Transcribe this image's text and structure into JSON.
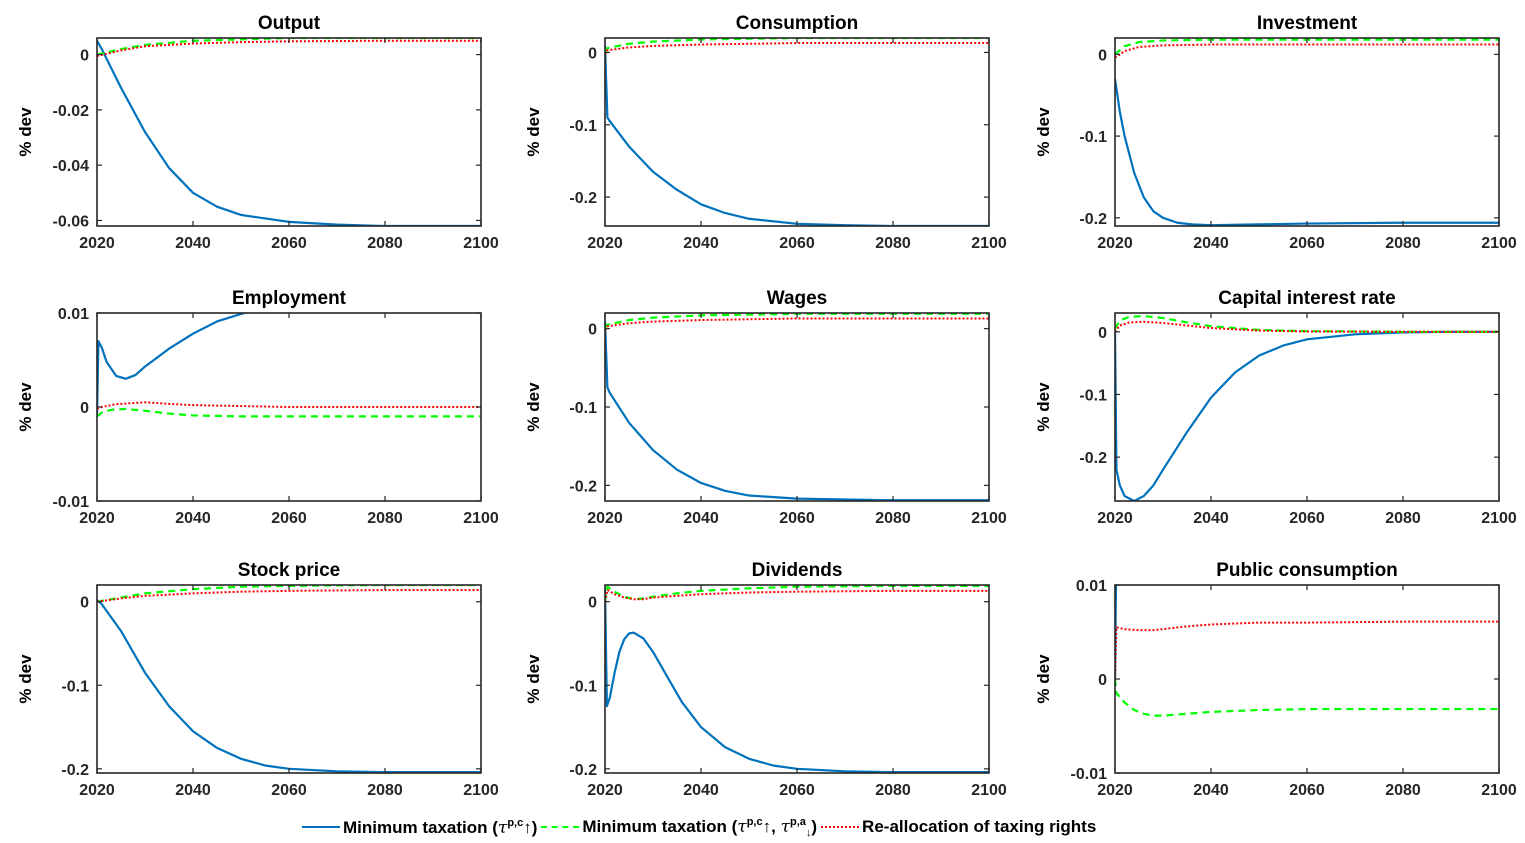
{
  "colors": {
    "min_tax": "#0072BD",
    "min_tax_pa": "#00FF00",
    "realloc": "#FF0000",
    "axis": "#262626"
  },
  "legend": {
    "min_tax": {
      "prefix": "Minimum taxation (",
      "tau": "τ",
      "sup": "p,c",
      "arrow": "↑",
      "suffix": ")"
    },
    "min_tax_pa": {
      "prefix": "Minimum taxation (",
      "tau1": "τ",
      "sup1": "p,c",
      "arrow1": "↑",
      "sep": ", ",
      "tau2": "τ",
      "sup2": "p,a",
      "arrow2": "↓",
      "suffix": ")"
    },
    "realloc": {
      "label": "Re-allocation of taxing rights"
    }
  },
  "chart_data": [
    {
      "type": "line",
      "title": "Output",
      "ylabel": "% dev",
      "xlim": [
        2020,
        2100
      ],
      "ylim": [
        -0.062,
        0.006
      ],
      "xticks": [
        "2020",
        "2040",
        "2060",
        "2080",
        "2100"
      ],
      "yticks": [
        {
          "v": 0,
          "t": "0"
        },
        {
          "v": -0.02,
          "t": "-0.02"
        },
        {
          "v": -0.04,
          "t": "-0.04"
        },
        {
          "v": -0.06,
          "t": "-0.06"
        }
      ],
      "series": [
        {
          "key": "min_tax",
          "x": [
            2020,
            2021,
            2025,
            2030,
            2035,
            2040,
            2045,
            2050,
            2060,
            2070,
            2080,
            2090,
            2100
          ],
          "y": [
            0.005,
            0.002,
            -0.012,
            -0.028,
            -0.041,
            -0.05,
            -0.055,
            -0.058,
            -0.0605,
            -0.0615,
            -0.062,
            -0.062,
            -0.062
          ]
        },
        {
          "key": "min_tax_pa",
          "x": [
            2020,
            2025,
            2030,
            2040,
            2050,
            2060,
            2080,
            2100
          ],
          "y": [
            0.0,
            0.002,
            0.0035,
            0.005,
            0.0055,
            0.006,
            0.006,
            0.006
          ]
        },
        {
          "key": "realloc",
          "x": [
            2020,
            2025,
            2030,
            2040,
            2050,
            2060,
            2080,
            2100
          ],
          "y": [
            -0.0005,
            0.0015,
            0.003,
            0.004,
            0.0045,
            0.0048,
            0.005,
            0.005
          ]
        }
      ]
    },
    {
      "type": "line",
      "title": "Consumption",
      "ylabel": "% dev",
      "xlim": [
        2020,
        2100
      ],
      "ylim": [
        -0.24,
        0.02
      ],
      "xticks": [
        "2020",
        "2040",
        "2060",
        "2080",
        "2100"
      ],
      "yticks": [
        {
          "v": 0,
          "t": "0"
        },
        {
          "v": -0.1,
          "t": "-0.1"
        },
        {
          "v": -0.2,
          "t": "-0.2"
        }
      ],
      "series": [
        {
          "key": "min_tax",
          "x": [
            2020,
            2020.5,
            2021,
            2025,
            2030,
            2035,
            2040,
            2045,
            2050,
            2060,
            2070,
            2080,
            2090,
            2100
          ],
          "y": [
            0.01,
            -0.09,
            -0.095,
            -0.13,
            -0.165,
            -0.19,
            -0.21,
            -0.222,
            -0.23,
            -0.237,
            -0.239,
            -0.24,
            -0.24,
            -0.24
          ]
        },
        {
          "key": "min_tax_pa",
          "x": [
            2020,
            2020.5,
            2025,
            2030,
            2040,
            2050,
            2060,
            2080,
            2100
          ],
          "y": [
            0.0,
            0.006,
            0.012,
            0.015,
            0.018,
            0.019,
            0.02,
            0.02,
            0.02
          ]
        },
        {
          "key": "realloc",
          "x": [
            2020,
            2020.5,
            2025,
            2030,
            2040,
            2050,
            2060,
            2080,
            2100
          ],
          "y": [
            -0.003,
            0.003,
            0.007,
            0.009,
            0.011,
            0.012,
            0.013,
            0.013,
            0.013
          ]
        }
      ]
    },
    {
      "type": "line",
      "title": "Investment",
      "ylabel": "% dev",
      "xlim": [
        2020,
        2100
      ],
      "ylim": [
        -0.21,
        0.02
      ],
      "xticks": [
        "2020",
        "2040",
        "2060",
        "2080",
        "2100"
      ],
      "yticks": [
        {
          "v": 0,
          "t": "0"
        },
        {
          "v": -0.1,
          "t": "-0.1"
        },
        {
          "v": -0.2,
          "t": "-0.2"
        }
      ],
      "series": [
        {
          "key": "min_tax",
          "x": [
            2020,
            2021,
            2022,
            2024,
            2026,
            2028,
            2030,
            2033,
            2036,
            2040,
            2050,
            2060,
            2080,
            2100
          ],
          "y": [
            -0.03,
            -0.07,
            -0.1,
            -0.145,
            -0.175,
            -0.192,
            -0.2,
            -0.206,
            -0.208,
            -0.209,
            -0.208,
            -0.207,
            -0.206,
            -0.206
          ]
        },
        {
          "key": "min_tax_pa",
          "x": [
            2020,
            2022,
            2025,
            2030,
            2040,
            2060,
            2080,
            2100
          ],
          "y": [
            0.0,
            0.01,
            0.015,
            0.017,
            0.018,
            0.018,
            0.018,
            0.018
          ]
        },
        {
          "key": "realloc",
          "x": [
            2020,
            2022,
            2025,
            2030,
            2040,
            2060,
            2080,
            2100
          ],
          "y": [
            -0.004,
            0.004,
            0.009,
            0.011,
            0.012,
            0.012,
            0.012,
            0.012
          ]
        }
      ]
    },
    {
      "type": "line",
      "title": "Employment",
      "ylabel": "% dev",
      "xlim": [
        2020,
        2100
      ],
      "ylim": [
        -0.01,
        0.01
      ],
      "xticks": [
        "2020",
        "2040",
        "2060",
        "2080",
        "2100"
      ],
      "yticks": [
        {
          "v": 0.01,
          "t": "0.01"
        },
        {
          "v": 0,
          "t": "0"
        },
        {
          "v": -0.01,
          "t": "-0.01"
        }
      ],
      "series": [
        {
          "key": "min_tax",
          "x": [
            2020,
            2020.3,
            2021,
            2022,
            2024,
            2026,
            2028,
            2030,
            2035,
            2040,
            2045,
            2050,
            2052
          ],
          "y": [
            -0.001,
            0.007,
            0.0063,
            0.0048,
            0.0033,
            0.003,
            0.0034,
            0.0043,
            0.0062,
            0.0078,
            0.0091,
            0.0099,
            0.0102
          ]
        },
        {
          "key": "min_tax_pa",
          "x": [
            2020,
            2021,
            2023,
            2026,
            2030,
            2035,
            2040,
            2050,
            2060,
            2080,
            2100
          ],
          "y": [
            -0.001,
            -0.0006,
            -0.0003,
            -0.0002,
            -0.0004,
            -0.0007,
            -0.0009,
            -0.001,
            -0.001,
            -0.001,
            -0.001
          ]
        },
        {
          "key": "realloc",
          "x": [
            2020,
            2021,
            2024,
            2027,
            2030,
            2033,
            2036,
            2040,
            2050,
            2060,
            2080,
            2100
          ],
          "y": [
            -0.0002,
            0.0,
            0.0003,
            0.0004,
            0.0005,
            0.0004,
            0.0003,
            0.0002,
            0.0001,
            0.0,
            0.0,
            0.0
          ]
        }
      ]
    },
    {
      "type": "line",
      "title": "Wages",
      "ylabel": "% dev",
      "xlim": [
        2020,
        2100
      ],
      "ylim": [
        -0.22,
        0.02
      ],
      "xticks": [
        "2020",
        "2040",
        "2060",
        "2080",
        "2100"
      ],
      "yticks": [
        {
          "v": 0,
          "t": "0"
        },
        {
          "v": -0.1,
          "t": "-0.1"
        },
        {
          "v": -0.2,
          "t": "-0.2"
        }
      ],
      "series": [
        {
          "key": "min_tax",
          "x": [
            2020,
            2020.5,
            2021,
            2025,
            2030,
            2035,
            2040,
            2045,
            2050,
            2060,
            2070,
            2080,
            2090,
            2100
          ],
          "y": [
            0.01,
            -0.075,
            -0.082,
            -0.12,
            -0.155,
            -0.18,
            -0.197,
            -0.207,
            -0.213,
            -0.217,
            -0.218,
            -0.219,
            -0.219,
            -0.219
          ]
        },
        {
          "key": "min_tax_pa",
          "x": [
            2020,
            2020.5,
            2025,
            2030,
            2040,
            2050,
            2060,
            2080,
            2100
          ],
          "y": [
            0.0,
            0.005,
            0.011,
            0.014,
            0.017,
            0.018,
            0.019,
            0.019,
            0.019
          ]
        },
        {
          "key": "realloc",
          "x": [
            2020,
            2020.5,
            2025,
            2030,
            2040,
            2050,
            2060,
            2080,
            2100
          ],
          "y": [
            -0.002,
            0.003,
            0.007,
            0.009,
            0.011,
            0.012,
            0.013,
            0.013,
            0.013
          ]
        }
      ]
    },
    {
      "type": "line",
      "title": "Capital interest rate",
      "ylabel": "% dev",
      "xlim": [
        2020,
        2100
      ],
      "ylim": [
        -0.27,
        0.03
      ],
      "xticks": [
        "2020",
        "2040",
        "2060",
        "2080",
        "2100"
      ],
      "yticks": [
        {
          "v": 0,
          "t": "0"
        },
        {
          "v": -0.1,
          "t": "-0.1"
        },
        {
          "v": -0.2,
          "t": "-0.2"
        }
      ],
      "series": [
        {
          "key": "min_tax",
          "x": [
            2020,
            2020.3,
            2021,
            2022,
            2024,
            2026,
            2028,
            2030,
            2035,
            2040,
            2045,
            2050,
            2055,
            2060,
            2070,
            2080,
            2090,
            2100
          ],
          "y": [
            0.0,
            -0.22,
            -0.245,
            -0.262,
            -0.27,
            -0.262,
            -0.245,
            -0.22,
            -0.16,
            -0.105,
            -0.065,
            -0.038,
            -0.022,
            -0.012,
            -0.004,
            -0.001,
            0.0,
            0.0
          ]
        },
        {
          "key": "min_tax_pa",
          "x": [
            2020,
            2021,
            2023,
            2026,
            2030,
            2035,
            2040,
            2050,
            2060,
            2080,
            2100
          ],
          "y": [
            0.005,
            0.018,
            0.024,
            0.025,
            0.022,
            0.015,
            0.009,
            0.003,
            0.001,
            0.0,
            0.0
          ]
        },
        {
          "key": "realloc",
          "x": [
            2020,
            2021,
            2023,
            2026,
            2030,
            2035,
            2040,
            2050,
            2060,
            2080,
            2100
          ],
          "y": [
            0.0,
            0.01,
            0.015,
            0.016,
            0.014,
            0.01,
            0.006,
            0.002,
            0.0005,
            0.0,
            0.0
          ]
        }
      ]
    },
    {
      "type": "line",
      "title": "Stock price",
      "ylabel": "% dev",
      "xlim": [
        2020,
        2100
      ],
      "ylim": [
        -0.205,
        0.02
      ],
      "xticks": [
        "2020",
        "2040",
        "2060",
        "2080",
        "2100"
      ],
      "yticks": [
        {
          "v": 0,
          "t": "0"
        },
        {
          "v": -0.1,
          "t": "-0.1"
        },
        {
          "v": -0.2,
          "t": "-0.2"
        }
      ],
      "series": [
        {
          "key": "min_tax",
          "x": [
            2020,
            2021,
            2025,
            2030,
            2035,
            2040,
            2045,
            2050,
            2055,
            2060,
            2070,
            2080,
            2090,
            2100
          ],
          "y": [
            0.002,
            -0.003,
            -0.035,
            -0.085,
            -0.125,
            -0.155,
            -0.175,
            -0.188,
            -0.196,
            -0.2,
            -0.203,
            -0.204,
            -0.204,
            -0.204
          ]
        },
        {
          "key": "min_tax_pa",
          "x": [
            2020,
            2025,
            2030,
            2040,
            2050,
            2060,
            2080,
            2100
          ],
          "y": [
            0.0,
            0.005,
            0.01,
            0.015,
            0.018,
            0.019,
            0.02,
            0.02
          ]
        },
        {
          "key": "realloc",
          "x": [
            2020,
            2025,
            2030,
            2040,
            2050,
            2060,
            2080,
            2100
          ],
          "y": [
            0.0,
            0.004,
            0.007,
            0.01,
            0.012,
            0.013,
            0.014,
            0.014
          ]
        }
      ]
    },
    {
      "type": "line",
      "title": "Dividends",
      "ylabel": "% dev",
      "xlim": [
        2020,
        2100
      ],
      "ylim": [
        -0.205,
        0.02
      ],
      "xticks": [
        "2020",
        "2040",
        "2060",
        "2080",
        "2100"
      ],
      "yticks": [
        {
          "v": 0,
          "t": "0"
        },
        {
          "v": -0.1,
          "t": "-0.1"
        },
        {
          "v": -0.2,
          "t": "-0.2"
        }
      ],
      "series": [
        {
          "key": "min_tax",
          "x": [
            2020,
            2020.4,
            2021,
            2022,
            2023,
            2024,
            2025,
            2026,
            2028,
            2030,
            2033,
            2036,
            2040,
            2045,
            2050,
            2055,
            2060,
            2070,
            2080,
            2090,
            2100
          ],
          "y": [
            0.015,
            -0.125,
            -0.115,
            -0.085,
            -0.06,
            -0.045,
            -0.038,
            -0.037,
            -0.044,
            -0.06,
            -0.09,
            -0.12,
            -0.15,
            -0.174,
            -0.188,
            -0.196,
            -0.2,
            -0.203,
            -0.204,
            -0.204,
            -0.204
          ]
        },
        {
          "key": "min_tax_pa",
          "x": [
            2020,
            2020.5,
            2022,
            2024,
            2026,
            2028,
            2030,
            2035,
            2040,
            2050,
            2060,
            2080,
            2100
          ],
          "y": [
            0.0,
            0.018,
            0.012,
            0.006,
            0.003,
            0.004,
            0.006,
            0.01,
            0.013,
            0.016,
            0.018,
            0.019,
            0.019
          ]
        },
        {
          "key": "realloc",
          "x": [
            2020,
            2020.5,
            2022,
            2024,
            2026,
            2028,
            2030,
            2035,
            2040,
            2050,
            2060,
            2080,
            2100
          ],
          "y": [
            0.0,
            0.014,
            0.009,
            0.005,
            0.003,
            0.003,
            0.005,
            0.007,
            0.009,
            0.011,
            0.012,
            0.013,
            0.013
          ]
        }
      ]
    },
    {
      "type": "line",
      "title": "Public consumption",
      "ylabel": "% dev",
      "xlim": [
        2020,
        2100
      ],
      "ylim": [
        -0.01,
        0.01
      ],
      "xticks": [
        "2020",
        "2040",
        "2060",
        "2080",
        "2100"
      ],
      "yticks": [
        {
          "v": 0.01,
          "t": "0.01"
        },
        {
          "v": 0,
          "t": "0"
        },
        {
          "v": -0.01,
          "t": "-0.01"
        }
      ],
      "series": [
        {
          "key": "min_tax",
          "x": [
            2020,
            2020.2
          ],
          "y": [
            0.0,
            0.01
          ]
        },
        {
          "key": "min_tax_pa",
          "x": [
            2020,
            2020.3,
            2022,
            2024,
            2026,
            2028,
            2030,
            2035,
            2040,
            2050,
            2060,
            2080,
            2100
          ],
          "y": [
            0.0,
            -0.0015,
            -0.0025,
            -0.0033,
            -0.0037,
            -0.0039,
            -0.0039,
            -0.0037,
            -0.0035,
            -0.0033,
            -0.0032,
            -0.0032,
            -0.0032
          ]
        },
        {
          "key": "realloc",
          "x": [
            2020,
            2020.3,
            2022,
            2025,
            2028,
            2030,
            2035,
            2040,
            2050,
            2060,
            2080,
            2100
          ],
          "y": [
            0.0,
            0.0055,
            0.0053,
            0.0052,
            0.0052,
            0.0053,
            0.0056,
            0.0058,
            0.006,
            0.006,
            0.0061,
            0.0061
          ]
        }
      ]
    }
  ]
}
